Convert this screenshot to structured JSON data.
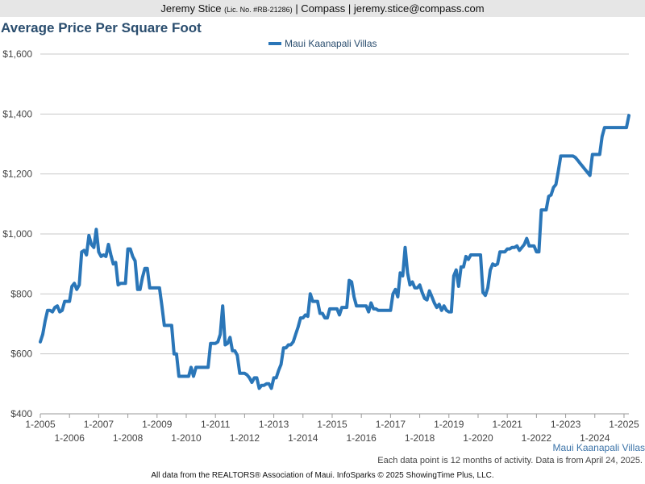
{
  "header": {
    "agent_name": "Jeremy Stice",
    "license": "(Lic. No. #RB-21286)",
    "brokerage": "| Compass |",
    "email": "jeremy.stice@compass.com"
  },
  "chart_data": {
    "type": "line",
    "title": "Average Price Per Square Foot",
    "xlabel": "",
    "ylabel": "",
    "ylim": [
      400,
      1600
    ],
    "y_ticks": [
      "$400",
      "$600",
      "$800",
      "$1,000",
      "$1,200",
      "$1,400",
      "$1,600"
    ],
    "x_ticks_upper": [
      "1-2005",
      "1-2007",
      "1-2009",
      "1-2011",
      "1-2013",
      "1-2015",
      "1-2017",
      "1-2019",
      "1-2021",
      "1-2023",
      "1-2025"
    ],
    "x_ticks_lower": [
      "1-2006",
      "1-2008",
      "1-2010",
      "1-2012",
      "1-2014",
      "1-2016",
      "1-2018",
      "1-2020",
      "1-2022",
      "1-2024"
    ],
    "grid": "horizontal",
    "legend_position": "top-center",
    "color": "#2a76b8",
    "series": [
      {
        "name": "Maui Kaanapali Villas",
        "x_start": "2005-01",
        "x_end": "2025-03",
        "points": [
          [
            "2005-01",
            640
          ],
          [
            "2005-02",
            665
          ],
          [
            "2005-03",
            710
          ],
          [
            "2005-04",
            745
          ],
          [
            "2005-05",
            745
          ],
          [
            "2005-06",
            740
          ],
          [
            "2005-07",
            755
          ],
          [
            "2005-08",
            760
          ],
          [
            "2005-09",
            740
          ],
          [
            "2005-10",
            745
          ],
          [
            "2005-11",
            775
          ],
          [
            "2005-12",
            775
          ],
          [
            "2006-01",
            775
          ],
          [
            "2006-02",
            825
          ],
          [
            "2006-03",
            835
          ],
          [
            "2006-04",
            815
          ],
          [
            "2006-05",
            830
          ],
          [
            "2006-06",
            940
          ],
          [
            "2006-07",
            945
          ],
          [
            "2006-08",
            930
          ],
          [
            "2006-09",
            995
          ],
          [
            "2006-10",
            965
          ],
          [
            "2006-11",
            955
          ],
          [
            "2006-12",
            1015
          ],
          [
            "2007-01",
            940
          ],
          [
            "2007-02",
            925
          ],
          [
            "2007-03",
            930
          ],
          [
            "2007-04",
            925
          ],
          [
            "2007-05",
            965
          ],
          [
            "2007-06",
            930
          ],
          [
            "2007-07",
            900
          ],
          [
            "2007-08",
            905
          ],
          [
            "2007-09",
            830
          ],
          [
            "2007-10",
            835
          ],
          [
            "2007-11",
            835
          ],
          [
            "2007-12",
            835
          ],
          [
            "2008-01",
            950
          ],
          [
            "2008-02",
            950
          ],
          [
            "2008-03",
            925
          ],
          [
            "2008-04",
            910
          ],
          [
            "2008-05",
            815
          ],
          [
            "2008-06",
            815
          ],
          [
            "2008-07",
            855
          ],
          [
            "2008-08",
            885
          ],
          [
            "2008-09",
            885
          ],
          [
            "2008-10",
            820
          ],
          [
            "2008-11",
            820
          ],
          [
            "2008-12",
            820
          ],
          [
            "2009-01",
            820
          ],
          [
            "2009-02",
            820
          ],
          [
            "2009-03",
            760
          ],
          [
            "2009-04",
            695
          ],
          [
            "2009-05",
            695
          ],
          [
            "2009-06",
            695
          ],
          [
            "2009-07",
            695
          ],
          [
            "2009-08",
            600
          ],
          [
            "2009-09",
            600
          ],
          [
            "2009-10",
            525
          ],
          [
            "2009-11",
            525
          ],
          [
            "2009-12",
            525
          ],
          [
            "2010-01",
            525
          ],
          [
            "2010-02",
            525
          ],
          [
            "2010-03",
            555
          ],
          [
            "2010-04",
            525
          ],
          [
            "2010-05",
            555
          ],
          [
            "2010-06",
            555
          ],
          [
            "2010-07",
            555
          ],
          [
            "2010-08",
            555
          ],
          [
            "2010-09",
            555
          ],
          [
            "2010-10",
            555
          ],
          [
            "2010-11",
            635
          ],
          [
            "2010-12",
            635
          ],
          [
            "2011-01",
            635
          ],
          [
            "2011-02",
            640
          ],
          [
            "2011-03",
            665
          ],
          [
            "2011-04",
            760
          ],
          [
            "2011-05",
            630
          ],
          [
            "2011-06",
            635
          ],
          [
            "2011-07",
            655
          ],
          [
            "2011-08",
            610
          ],
          [
            "2011-09",
            610
          ],
          [
            "2011-10",
            595
          ],
          [
            "2011-11",
            535
          ],
          [
            "2011-12",
            535
          ],
          [
            "2012-01",
            535
          ],
          [
            "2012-02",
            530
          ],
          [
            "2012-03",
            520
          ],
          [
            "2012-04",
            505
          ],
          [
            "2012-05",
            520
          ],
          [
            "2012-06",
            520
          ],
          [
            "2012-07",
            485
          ],
          [
            "2012-08",
            495
          ],
          [
            "2012-09",
            495
          ],
          [
            "2012-10",
            500
          ],
          [
            "2012-11",
            500
          ],
          [
            "2012-12",
            485
          ],
          [
            "2013-01",
            520
          ],
          [
            "2013-02",
            520
          ],
          [
            "2013-03",
            545
          ],
          [
            "2013-04",
            565
          ],
          [
            "2013-05",
            620
          ],
          [
            "2013-06",
            620
          ],
          [
            "2013-07",
            630
          ],
          [
            "2013-08",
            630
          ],
          [
            "2013-09",
            640
          ],
          [
            "2013-10",
            665
          ],
          [
            "2013-11",
            690
          ],
          [
            "2013-12",
            720
          ],
          [
            "2014-01",
            720
          ],
          [
            "2014-02",
            730
          ],
          [
            "2014-03",
            725
          ],
          [
            "2014-04",
            800
          ],
          [
            "2014-05",
            775
          ],
          [
            "2014-06",
            775
          ],
          [
            "2014-07",
            775
          ],
          [
            "2014-08",
            735
          ],
          [
            "2014-09",
            735
          ],
          [
            "2014-10",
            720
          ],
          [
            "2014-11",
            720
          ],
          [
            "2014-12",
            750
          ],
          [
            "2015-01",
            750
          ],
          [
            "2015-02",
            750
          ],
          [
            "2015-03",
            750
          ],
          [
            "2015-04",
            730
          ],
          [
            "2015-05",
            755
          ],
          [
            "2015-06",
            755
          ],
          [
            "2015-07",
            755
          ],
          [
            "2015-08",
            845
          ],
          [
            "2015-09",
            840
          ],
          [
            "2015-10",
            790
          ],
          [
            "2015-11",
            760
          ],
          [
            "2015-12",
            760
          ],
          [
            "2016-01",
            760
          ],
          [
            "2016-02",
            760
          ],
          [
            "2016-03",
            760
          ],
          [
            "2016-04",
            740
          ],
          [
            "2016-05",
            770
          ],
          [
            "2016-06",
            750
          ],
          [
            "2016-07",
            750
          ],
          [
            "2016-08",
            745
          ],
          [
            "2016-09",
            745
          ],
          [
            "2016-10",
            745
          ],
          [
            "2016-11",
            745
          ],
          [
            "2016-12",
            745
          ],
          [
            "2017-01",
            745
          ],
          [
            "2017-02",
            800
          ],
          [
            "2017-03",
            815
          ],
          [
            "2017-04",
            790
          ],
          [
            "2017-05",
            870
          ],
          [
            "2017-06",
            860
          ],
          [
            "2017-07",
            955
          ],
          [
            "2017-08",
            870
          ],
          [
            "2017-09",
            830
          ],
          [
            "2017-10",
            840
          ],
          [
            "2017-11",
            820
          ],
          [
            "2017-12",
            820
          ],
          [
            "2018-01",
            830
          ],
          [
            "2018-02",
            805
          ],
          [
            "2018-03",
            785
          ],
          [
            "2018-04",
            780
          ],
          [
            "2018-05",
            810
          ],
          [
            "2018-06",
            790
          ],
          [
            "2018-07",
            770
          ],
          [
            "2018-08",
            755
          ],
          [
            "2018-09",
            765
          ],
          [
            "2018-10",
            745
          ],
          [
            "2018-11",
            760
          ],
          [
            "2018-12",
            745
          ],
          [
            "2019-01",
            740
          ],
          [
            "2019-02",
            740
          ],
          [
            "2019-03",
            860
          ],
          [
            "2019-04",
            880
          ],
          [
            "2019-05",
            825
          ],
          [
            "2019-06",
            890
          ],
          [
            "2019-07",
            890
          ],
          [
            "2019-08",
            925
          ],
          [
            "2019-09",
            915
          ],
          [
            "2019-10",
            930
          ],
          [
            "2019-11",
            930
          ],
          [
            "2019-12",
            930
          ],
          [
            "2020-01",
            930
          ],
          [
            "2020-02",
            930
          ],
          [
            "2020-03",
            805
          ],
          [
            "2020-04",
            795
          ],
          [
            "2020-05",
            820
          ],
          [
            "2020-06",
            880
          ],
          [
            "2020-07",
            900
          ],
          [
            "2020-08",
            895
          ],
          [
            "2020-09",
            900
          ],
          [
            "2020-10",
            940
          ],
          [
            "2020-11",
            940
          ],
          [
            "2020-12",
            940
          ],
          [
            "2021-01",
            950
          ],
          [
            "2021-02",
            950
          ],
          [
            "2021-03",
            955
          ],
          [
            "2021-04",
            955
          ],
          [
            "2021-05",
            960
          ],
          [
            "2021-06",
            945
          ],
          [
            "2021-07",
            955
          ],
          [
            "2021-08",
            965
          ],
          [
            "2021-09",
            985
          ],
          [
            "2021-10",
            960
          ],
          [
            "2021-11",
            960
          ],
          [
            "2021-12",
            960
          ],
          [
            "2022-01",
            940
          ],
          [
            "2022-02",
            940
          ],
          [
            "2022-03",
            1080
          ],
          [
            "2022-04",
            1080
          ],
          [
            "2022-05",
            1080
          ],
          [
            "2022-06",
            1125
          ],
          [
            "2022-07",
            1130
          ],
          [
            "2022-08",
            1155
          ],
          [
            "2022-09",
            1165
          ],
          [
            "2022-10",
            1210
          ],
          [
            "2022-11",
            1260
          ],
          [
            "2022-12",
            1260
          ],
          [
            "2023-01",
            1260
          ],
          [
            "2023-02",
            1260
          ],
          [
            "2023-03",
            1260
          ],
          [
            "2023-04",
            1260
          ],
          [
            "2023-05",
            1255
          ],
          [
            "2023-06",
            1245
          ],
          [
            "2023-07",
            1235
          ],
          [
            "2023-08",
            1225
          ],
          [
            "2023-09",
            1215
          ],
          [
            "2023-10",
            1205
          ],
          [
            "2023-11",
            1195
          ],
          [
            "2023-12",
            1265
          ],
          [
            "2024-01",
            1265
          ],
          [
            "2024-02",
            1265
          ],
          [
            "2024-03",
            1265
          ],
          [
            "2024-04",
            1325
          ],
          [
            "2024-05",
            1355
          ],
          [
            "2024-06",
            1355
          ],
          [
            "2024-07",
            1355
          ],
          [
            "2024-08",
            1355
          ],
          [
            "2024-09",
            1355
          ],
          [
            "2024-10",
            1355
          ],
          [
            "2024-11",
            1355
          ],
          [
            "2024-12",
            1355
          ],
          [
            "2025-01",
            1355
          ],
          [
            "2025-02",
            1355
          ],
          [
            "2025-03",
            1395
          ]
        ]
      }
    ]
  },
  "footer": {
    "series_caption": "Maui Kaanapali Villas",
    "note": "Each data point is 12 months of activity. Data is from April 24, 2025.",
    "source": "All data from the REALTORS® Association of Maui. InfoSparks © 2025 ShowingTime Plus, LLC."
  }
}
